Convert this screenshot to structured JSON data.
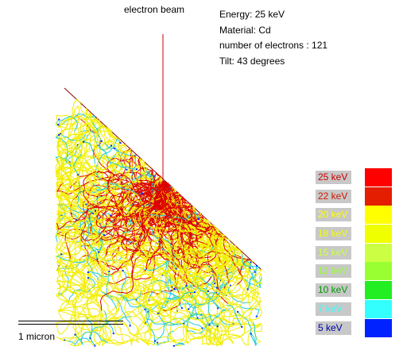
{
  "beam_label": "electron beam",
  "info": {
    "energy": "Energy: 25 keV",
    "material": "Material: Cd",
    "electrons": "number of electrons : 121",
    "tilt": "Tilt: 43 degrees"
  },
  "legend": [
    {
      "label": "25 keV",
      "color": "#ff0000",
      "text_color": "#cc0000"
    },
    {
      "label": "22 keV",
      "color": "#e41e00",
      "text_color": "#cc1800"
    },
    {
      "label": "20 keV",
      "color": "#ffff00",
      "text_color": "#ffff00"
    },
    {
      "label": "18 keV",
      "color": "#f0ff00",
      "text_color": "#f0ff00"
    },
    {
      "label": "15 keV",
      "color": "#ccff44",
      "text_color": "#ccff44"
    },
    {
      "label": "12 keV",
      "color": "#99ff33",
      "text_color": "#99ff33"
    },
    {
      "label": "10 keV",
      "color": "#22ee22",
      "text_color": "#009900"
    },
    {
      "label": "7 keV",
      "color": "#33ffff",
      "text_color": "#33ffff"
    },
    {
      "label": "5 keV",
      "color": "#0022ff",
      "text_color": "#0000aa"
    }
  ],
  "scale_bar_label": "1 micron",
  "colors": {
    "beam": "#cc0000",
    "surface": "#8b0000",
    "trajectory_high": "#dd0000",
    "trajectory_mid": "#f2ee00",
    "trajectory_low": "#22ccdd",
    "trajectory_end": "#0022ff"
  }
}
